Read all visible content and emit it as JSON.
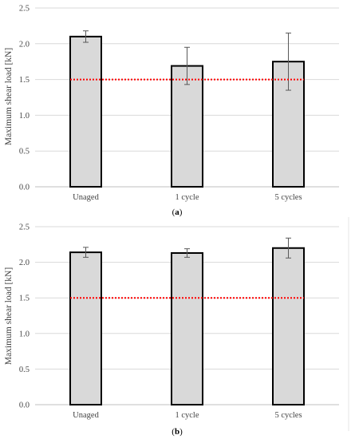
{
  "chart_data": [
    {
      "type": "bar",
      "panel_label": "(a)",
      "panel_letter": "a",
      "categories": [
        "Unaged",
        "1 cycle",
        "5 cycles"
      ],
      "values": [
        2.1,
        1.69,
        1.75
      ],
      "error": [
        0.08,
        0.26,
        0.4
      ],
      "ylabel": "Maximum shear load [kN]",
      "ylim": [
        0,
        2.5
      ],
      "yticks": [
        "0.0",
        "0.5",
        "1.0",
        "1.5",
        "2.0",
        "2.5"
      ],
      "threshold": 1.5,
      "grid": true,
      "colors": {
        "bar_fill": "#d9d9d9",
        "bar_stroke": "#000000",
        "threshold": "#ff0000",
        "grid": "#d9d9d9",
        "error": "#595959"
      }
    },
    {
      "type": "bar",
      "panel_label": "(b)",
      "panel_letter": "b",
      "categories": [
        "Unaged",
        "1 cycle",
        "5 cycles"
      ],
      "values": [
        2.14,
        2.13,
        2.2
      ],
      "error": [
        0.07,
        0.06,
        0.14
      ],
      "ylabel": "Maximum shear load [kN]",
      "ylim": [
        0,
        2.5
      ],
      "yticks": [
        "0.0",
        "0.5",
        "1.0",
        "1.5",
        "2.0",
        "2.5"
      ],
      "threshold": 1.5,
      "grid": true,
      "colors": {
        "bar_fill": "#d9d9d9",
        "bar_stroke": "#000000",
        "threshold": "#ff0000",
        "grid": "#d9d9d9",
        "error": "#595959"
      }
    }
  ]
}
